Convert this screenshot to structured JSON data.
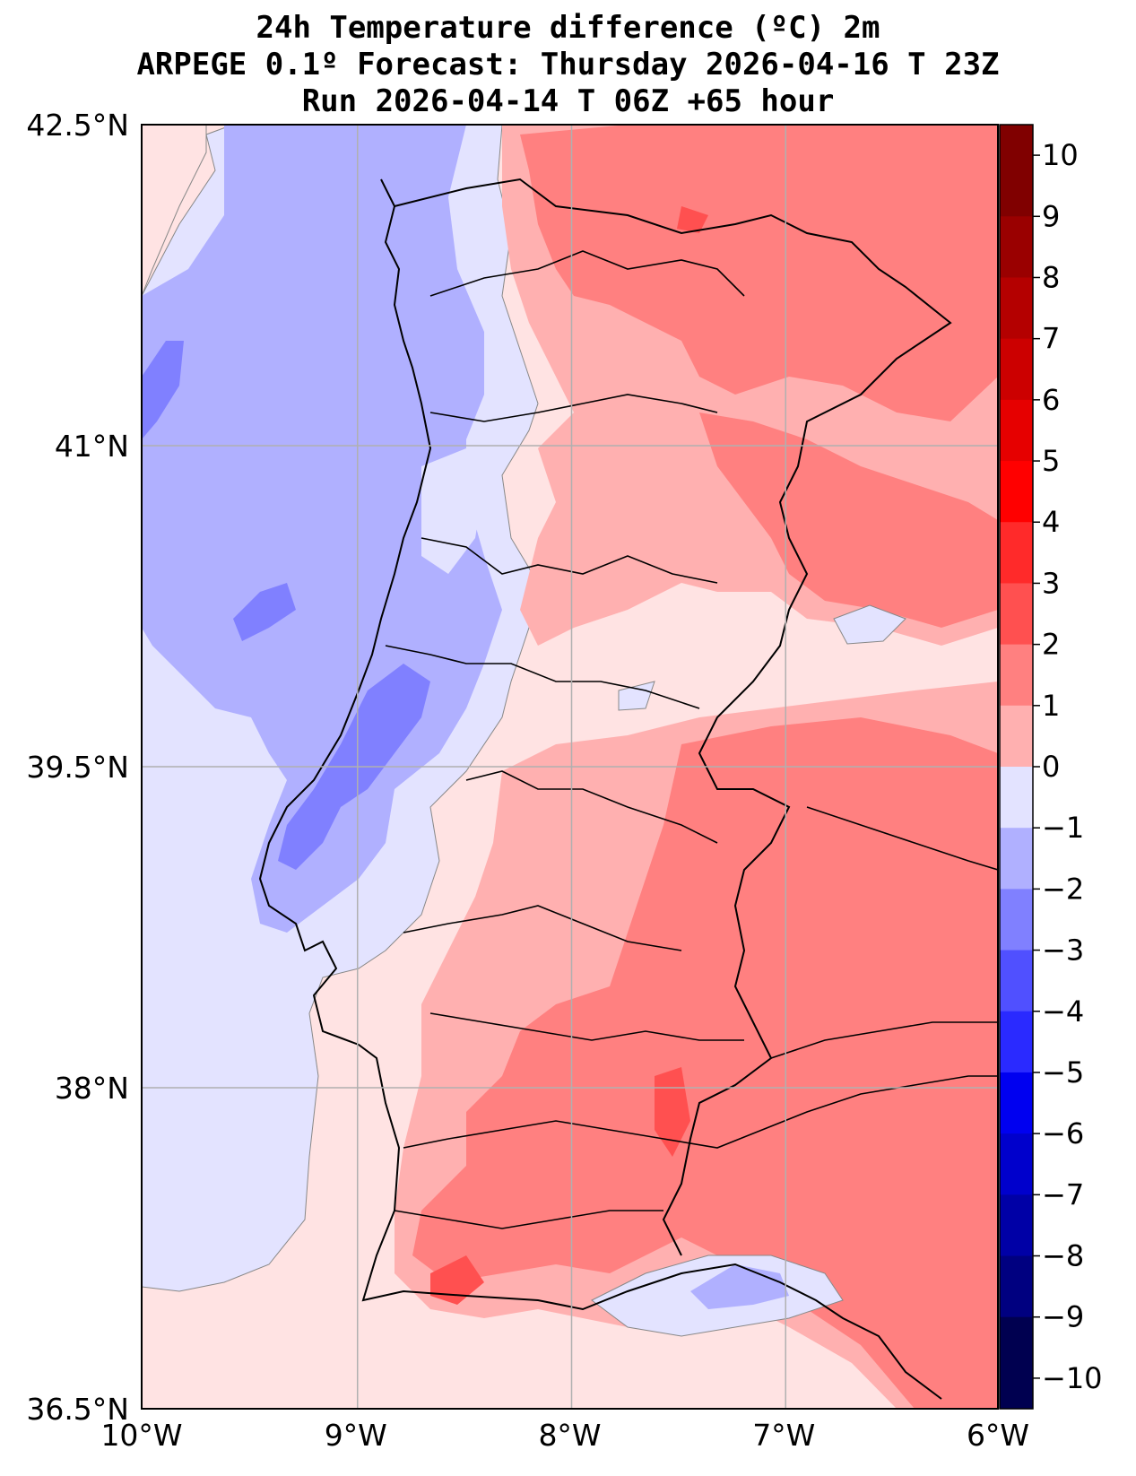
{
  "title": {
    "line1": "24h Temperature difference (ºC) 2m",
    "line2": "ARPEGE 0.1º Forecast: Thursday 2026-04-16 T 23Z",
    "line3": "Run 2026-04-14 T 06Z +65 hour"
  },
  "map": {
    "lon_range": [
      -10,
      -6
    ],
    "lat_range": [
      36.5,
      42.5
    ],
    "lon_ticks": [
      {
        "value": -10,
        "label": "10°W"
      },
      {
        "value": -9,
        "label": "9°W"
      },
      {
        "value": -8,
        "label": "8°W"
      },
      {
        "value": -7,
        "label": "7°W"
      },
      {
        "value": -6,
        "label": "6°W"
      }
    ],
    "lat_ticks": [
      {
        "value": 42.5,
        "label": "42.5°N"
      },
      {
        "value": 41,
        "label": "41°N"
      },
      {
        "value": 39.5,
        "label": "39.5°N"
      },
      {
        "value": 38,
        "label": "38°N"
      },
      {
        "value": 36.5,
        "label": "36.5°N"
      }
    ],
    "grid": true
  },
  "colorbar": {
    "levels": [
      10,
      9,
      8,
      7,
      6,
      5,
      4,
      3,
      2,
      1,
      0,
      -1,
      -2,
      -3,
      -4,
      -5,
      -6,
      -7,
      -8,
      -9,
      -10
    ],
    "labels": [
      "10",
      "9",
      "8",
      "7",
      "6",
      "5",
      "4",
      "3",
      "2",
      "1",
      "0",
      "−1",
      "−2",
      "−3",
      "−4",
      "−5",
      "−6",
      "−7",
      "−8",
      "−9",
      "−10"
    ],
    "colors": [
      "#800000",
      "#9a0000",
      "#b40000",
      "#cc0000",
      "#e60000",
      "#ff0000",
      "#ff2a2a",
      "#ff5050",
      "#ff8080",
      "#ffb0b0",
      "#ffe3e3",
      "#e3e3ff",
      "#b0b0ff",
      "#8080ff",
      "#5050ff",
      "#2a2aff",
      "#0000f0",
      "#0000cc",
      "#0000a6",
      "#000080",
      "#000050"
    ]
  }
}
